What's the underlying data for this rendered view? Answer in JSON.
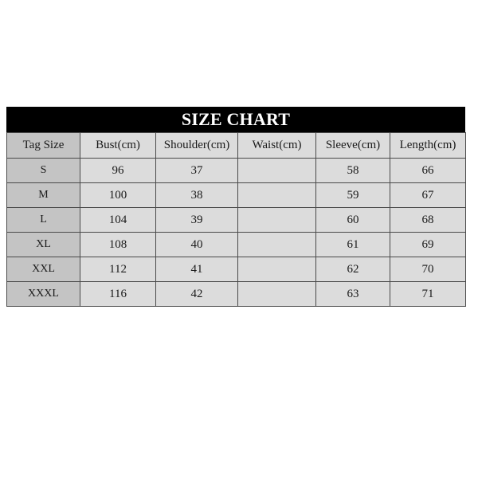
{
  "chart": {
    "title": "SIZE CHART",
    "headers": [
      "Tag Size",
      "Bust(cm)",
      "Shoulder(cm)",
      "Waist(cm)",
      "Sleeve(cm)",
      "Length(cm)"
    ],
    "rows": [
      [
        "S",
        "96",
        "37",
        "",
        "58",
        "66"
      ],
      [
        "M",
        "100",
        "38",
        "",
        "59",
        "67"
      ],
      [
        "L",
        "104",
        "39",
        "",
        "60",
        "68"
      ],
      [
        "XL",
        "108",
        "40",
        "",
        "61",
        "69"
      ],
      [
        "XXL",
        "112",
        "41",
        "",
        "62",
        "70"
      ],
      [
        "XXXL",
        "116",
        "42",
        "",
        "63",
        "71"
      ]
    ]
  }
}
